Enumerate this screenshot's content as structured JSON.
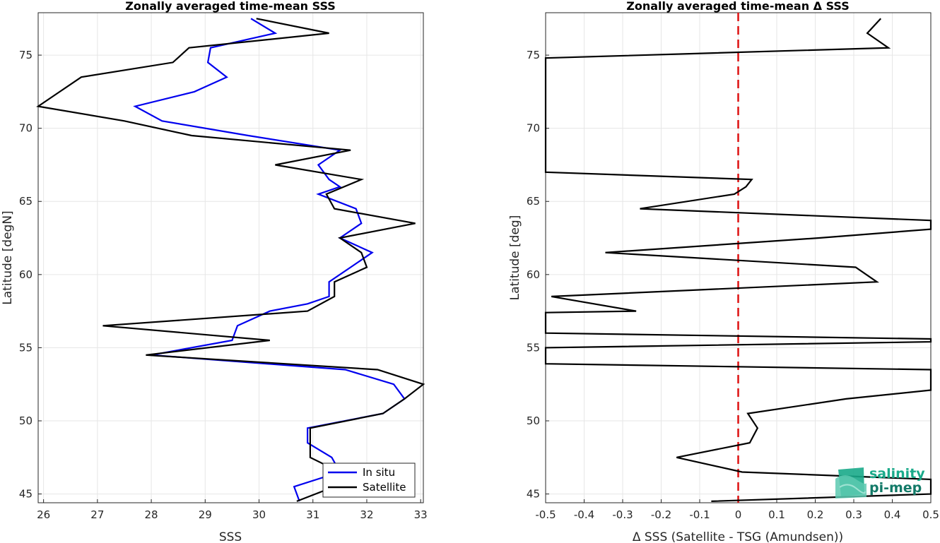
{
  "chart_data": [
    {
      "type": "line",
      "title": "Zonally averaged time-mean SSS",
      "xlabel": "SSS",
      "ylabel": "Latitude [degN]",
      "xlim": [
        25.9,
        33.05
      ],
      "ylim": [
        44.4,
        77.9
      ],
      "xticks": [
        "26",
        "27",
        "28",
        "29",
        "30",
        "31",
        "32",
        "33"
      ],
      "yticks": [
        "45",
        "50",
        "55",
        "60",
        "65",
        "70",
        "75"
      ],
      "grid": true,
      "legend": {
        "position": "bottom-right",
        "entries": [
          "In situ",
          "Satellite"
        ]
      },
      "series": [
        {
          "name": "In situ",
          "color": "#0000ee",
          "points": [
            [
              29.85,
              77.5
            ],
            [
              30.3,
              76.5
            ],
            [
              29.1,
              75.5
            ],
            [
              29.05,
              74.5
            ],
            [
              29.4,
              73.5
            ],
            [
              28.8,
              72.5
            ],
            [
              27.7,
              71.5
            ],
            [
              28.2,
              70.5
            ],
            [
              29.8,
              69.5
            ],
            [
              31.5,
              68.5
            ],
            [
              31.1,
              67.5
            ],
            [
              31.3,
              66.5
            ],
            [
              31.5,
              66.0
            ],
            [
              31.1,
              65.5
            ],
            [
              31.8,
              64.5
            ],
            [
              31.9,
              63.5
            ],
            [
              31.5,
              62.5
            ],
            [
              32.1,
              61.5
            ],
            [
              31.7,
              60.5
            ],
            [
              31.3,
              59.5
            ],
            [
              31.3,
              58.5
            ],
            [
              30.9,
              58.0
            ],
            [
              30.2,
              57.5
            ],
            [
              29.6,
              56.5
            ],
            [
              29.5,
              55.5
            ],
            [
              28.0,
              54.5
            ],
            [
              31.6,
              53.5
            ],
            [
              32.5,
              52.5
            ],
            [
              32.7,
              51.5
            ],
            [
              32.3,
              50.5
            ],
            [
              30.9,
              49.5
            ],
            [
              30.9,
              48.5
            ],
            [
              31.35,
              47.5
            ],
            [
              31.5,
              46.5
            ],
            [
              30.65,
              45.5
            ],
            [
              30.75,
              44.5
            ]
          ]
        },
        {
          "name": "Satellite",
          "color": "#000000",
          "points": [
            [
              29.95,
              77.5
            ],
            [
              31.3,
              76.5
            ],
            [
              28.7,
              75.5
            ],
            [
              28.4,
              74.5
            ],
            [
              26.7,
              73.5
            ],
            [
              26.3,
              72.5
            ],
            [
              25.9,
              71.5
            ],
            [
              27.5,
              70.5
            ],
            [
              28.75,
              69.5
            ],
            [
              31.7,
              68.5
            ],
            [
              30.3,
              67.5
            ],
            [
              31.9,
              66.5
            ],
            [
              31.25,
              65.5
            ],
            [
              31.4,
              64.5
            ],
            [
              32.9,
              63.5
            ],
            [
              31.5,
              62.5
            ],
            [
              31.9,
              61.5
            ],
            [
              32.0,
              60.5
            ],
            [
              31.4,
              59.5
            ],
            [
              31.4,
              58.5
            ],
            [
              30.9,
              57.5
            ],
            [
              27.1,
              56.5
            ],
            [
              30.2,
              55.5
            ],
            [
              27.9,
              54.5
            ],
            [
              32.2,
              53.5
            ],
            [
              33.05,
              52.5
            ],
            [
              32.7,
              51.5
            ],
            [
              32.3,
              50.5
            ],
            [
              30.95,
              49.5
            ],
            [
              30.95,
              48.5
            ],
            [
              30.95,
              47.5
            ],
            [
              31.5,
              46.5
            ],
            [
              31.4,
              45.5
            ],
            [
              30.7,
              44.5
            ]
          ]
        }
      ]
    },
    {
      "type": "line",
      "title": "Zonally averaged time-mean Δ SSS",
      "xlabel": "Δ SSS (Satellite - TSG (Amundsen))",
      "ylabel": "Latitude [deg]",
      "xlim": [
        -0.5,
        0.5
      ],
      "ylim": [
        44.4,
        77.9
      ],
      "xticks": [
        "-0.5",
        "-0.4",
        "-0.3",
        "-0.2",
        "-0.1",
        "0",
        "0.1",
        "0.2",
        "0.3",
        "0.4",
        "0.5"
      ],
      "yticks": [
        "45",
        "50",
        "55",
        "60",
        "65",
        "70",
        "75"
      ],
      "grid": true,
      "reference_line": {
        "x": 0,
        "color": "#dd1111",
        "style": "dashed"
      },
      "series": [
        {
          "name": "",
          "color": "#000000",
          "points": [
            [
              0.37,
              77.5
            ],
            [
              0.335,
              76.5
            ],
            [
              0.39,
              75.5
            ],
            [
              -0.5,
              74.8
            ],
            [
              -0.5,
              67.0
            ],
            [
              0.035,
              66.5
            ],
            [
              0.02,
              66.0
            ],
            [
              -0.01,
              65.5
            ],
            [
              -0.255,
              64.5
            ],
            [
              0.5,
              63.7
            ],
            [
              0.5,
              63.1
            ],
            [
              0.21,
              62.5
            ],
            [
              -0.345,
              61.5
            ],
            [
              0.305,
              60.5
            ],
            [
              0.36,
              59.5
            ],
            [
              -0.485,
              58.5
            ],
            [
              -0.265,
              57.5
            ],
            [
              -0.5,
              57.4
            ],
            [
              -0.5,
              56.0
            ],
            [
              0.5,
              55.6
            ],
            [
              0.5,
              55.4
            ],
            [
              -0.5,
              55.0
            ],
            [
              -0.5,
              53.9
            ],
            [
              0.5,
              53.5
            ],
            [
              0.5,
              52.1
            ],
            [
              0.28,
              51.5
            ],
            [
              0.025,
              50.5
            ],
            [
              0.05,
              49.5
            ],
            [
              0.03,
              48.5
            ],
            [
              -0.16,
              47.5
            ],
            [
              0.01,
              46.5
            ],
            [
              0.5,
              46.0
            ],
            [
              0.5,
              45.0
            ],
            [
              -0.07,
              44.5
            ]
          ]
        }
      ]
    }
  ],
  "logo": {
    "line1": "salinity",
    "line2": "pi-mep",
    "color1": "#1aaa8a",
    "color2": "#137a68"
  }
}
